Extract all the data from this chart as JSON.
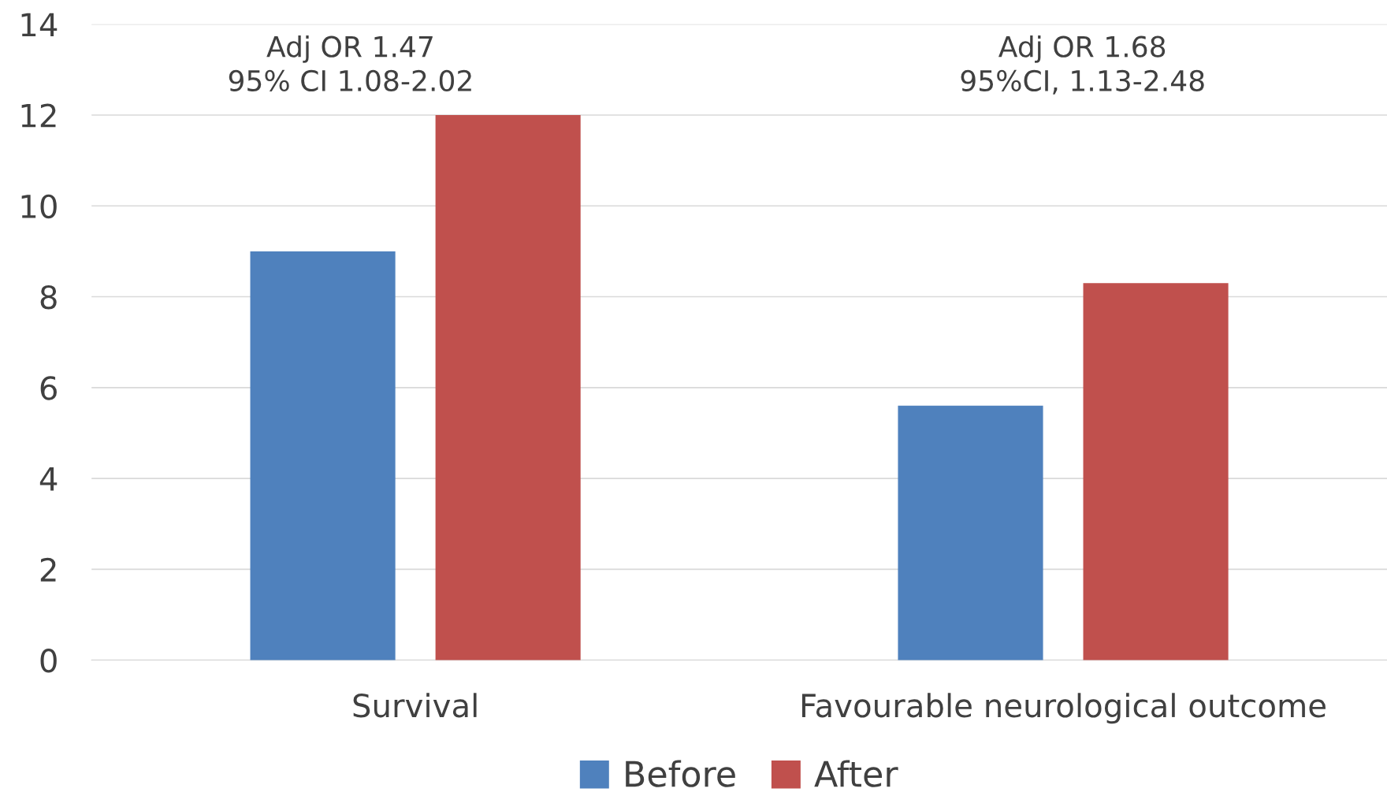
{
  "chart_data": {
    "type": "bar",
    "categories": [
      "Survival",
      "Favourable neurological outcome"
    ],
    "series": [
      {
        "name": "Before",
        "color": "#4f81bd",
        "values": [
          9,
          5.6
        ]
      },
      {
        "name": "After",
        "color": "#c0504d",
        "values": [
          12,
          8.3
        ]
      }
    ],
    "ylim": [
      0,
      14
    ],
    "yticks": [
      0,
      2,
      4,
      6,
      8,
      10,
      12,
      14
    ],
    "grid": "y",
    "legend": "bottom",
    "annotations": [
      "Adj OR 1.47\n95% CI 1.08-2.02",
      "Adj OR 1.68\n95%CI, 1.13-2.48"
    ]
  }
}
